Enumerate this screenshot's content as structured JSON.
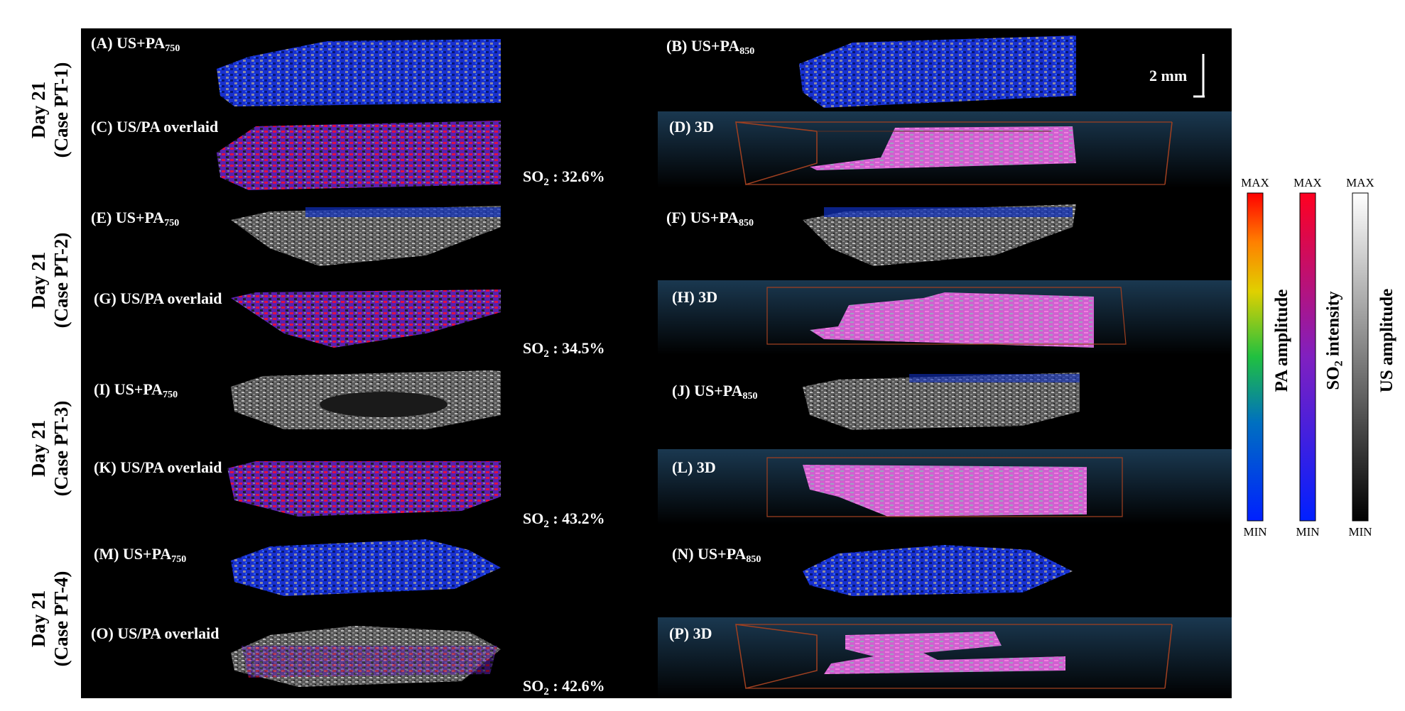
{
  "rows": [
    {
      "line1": "Day 21",
      "line2": "(Case PT-1)"
    },
    {
      "line1": "Day 21",
      "line2": "(Case PT-2)"
    },
    {
      "line1": "Day 21",
      "line2": "(Case PT-3)"
    },
    {
      "line1": "Day 21",
      "line2": "(Case PT-4)"
    }
  ],
  "panels": {
    "A": {
      "base": "(A) US+PA",
      "sub": "750"
    },
    "B": {
      "base": "(B) US+PA",
      "sub": "850"
    },
    "C": {
      "base": "(C) US/PA overlaid"
    },
    "D": {
      "base": "(D) 3D"
    },
    "E": {
      "base": "(E) US+PA",
      "sub": "750"
    },
    "F": {
      "base": "(F) US+PA",
      "sub": "850"
    },
    "G": {
      "base": "(G) US/PA overlaid"
    },
    "H": {
      "base": "(H) 3D"
    },
    "I": {
      "base": "(I) US+PA",
      "sub": "750"
    },
    "J": {
      "base": "(J) US+PA",
      "sub": "850"
    },
    "K": {
      "base": "(K) US/PA overlaid"
    },
    "L": {
      "base": "(L) 3D"
    },
    "M": {
      "base": "(M) US+PA",
      "sub": "750"
    },
    "N": {
      "base": "(N) US+PA",
      "sub": "850"
    },
    "O": {
      "base": "(O) US/PA overlaid"
    },
    "P": {
      "base": "(P) 3D"
    }
  },
  "so2": {
    "prefix": "SO",
    "sub": "2",
    "values": [
      " : 32.6%",
      " : 34.5%",
      " : 43.2%",
      " : 42.6%"
    ]
  },
  "scale_bar": "2 mm",
  "colorbars": [
    {
      "max": "MAX",
      "min": "MIN",
      "title": "PA amplitude",
      "title_sub": ""
    },
    {
      "max": "MAX",
      "min": "MIN",
      "title": "SO",
      "title_sub": "2",
      "title_after": " intensity"
    },
    {
      "max": "MAX",
      "min": "MIN",
      "title": "US amplitude",
      "title_sub": ""
    }
  ],
  "colors": {
    "background_panel": "#000000",
    "pa_low": "#1030ff",
    "pa_mid": "#20c060",
    "pa_high": "#ff2020",
    "so2_low": "#2020ff",
    "so2_high": "#ff1030",
    "threed_bg": "#0a1a2a",
    "threed_tissue": "#e070d0",
    "bbox": "#a04020"
  }
}
